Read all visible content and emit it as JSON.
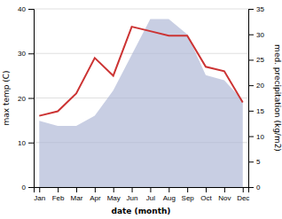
{
  "chart_data": {
    "type": "line",
    "x_label": "date (month)",
    "y_label": "max temp (C)",
    "y2_label": "med. precipitation (kg/m2)",
    "categories": [
      "Jan",
      "Feb",
      "Mar",
      "Apr",
      "May",
      "Jun",
      "Jul",
      "Aug",
      "Sep",
      "Oct",
      "Nov",
      "Dec"
    ],
    "series": [
      {
        "type": "area",
        "axis": "y2",
        "color": "#aab4d4",
        "values": [
          13,
          12,
          12,
          14,
          19,
          26,
          33,
          33,
          30,
          22,
          21,
          17
        ]
      },
      {
        "type": "line",
        "color": "#cc3333",
        "values": [
          16,
          17,
          21,
          29,
          25,
          36,
          35,
          34,
          34,
          27,
          26,
          19
        ]
      }
    ],
    "ylim": [
      0,
      40
    ],
    "yticks": [
      0,
      10,
      20,
      30,
      40
    ],
    "y2lim": [
      0,
      35
    ],
    "y2ticks": [
      0,
      5,
      10,
      15,
      20,
      25,
      30,
      35
    ],
    "grid": true
  }
}
